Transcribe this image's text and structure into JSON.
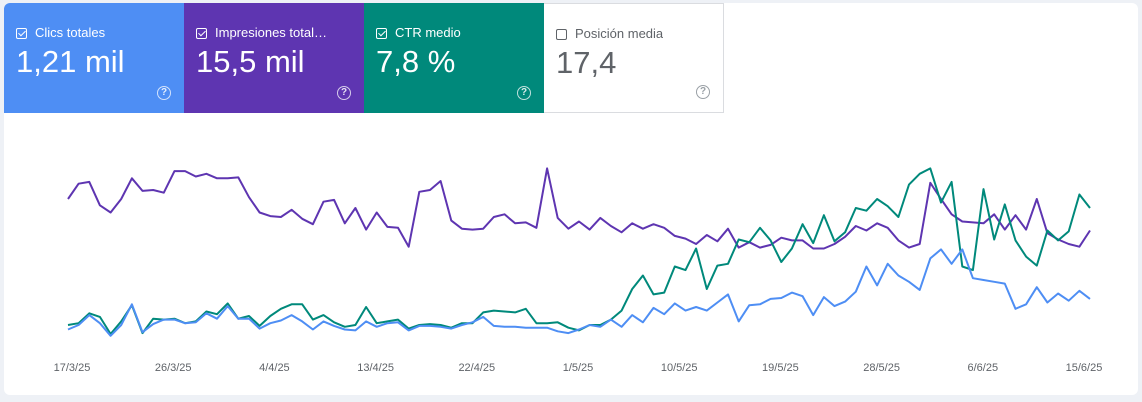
{
  "metrics": [
    {
      "label": "Clics totales",
      "value": "1,21 mil",
      "checked": true,
      "color": "#4e8ef4",
      "text_color": "#ffffff"
    },
    {
      "label": "Impresiones total…",
      "value": "15,5 mil",
      "checked": true,
      "color": "#5e35b1",
      "text_color": "#ffffff"
    },
    {
      "label": "CTR medio",
      "value": "7,8 %",
      "checked": true,
      "color": "#00897b",
      "text_color": "#ffffff"
    },
    {
      "label": "Posición media",
      "value": "17,4",
      "checked": false,
      "color": "#ffffff",
      "text_color": "#5f6368"
    }
  ],
  "help_glyph": "?",
  "chart_data": {
    "type": "line",
    "x_tick_labels": [
      "17/3/25",
      "26/3/25",
      "4/4/25",
      "13/4/25",
      "22/4/25",
      "1/5/25",
      "10/5/25",
      "19/5/25",
      "28/5/25",
      "6/6/25",
      "15/6/25"
    ],
    "x_range": [
      "17/3/25",
      "17/6/25"
    ],
    "y_axis_visible": false,
    "grid": false,
    "series": [
      {
        "name": "Impresiones totales",
        "color": "#5e35b1",
        "values": [
          200,
          217,
          219,
          193,
          185,
          200,
          223,
          209,
          210,
          207,
          231,
          231,
          225,
          228,
          223,
          223,
          224,
          202,
          185,
          181,
          180,
          188,
          178,
          172,
          197,
          199,
          173,
          190,
          166,
          185,
          169,
          168,
          147,
          208,
          210,
          220,
          176,
          167,
          166,
          167,
          180,
          183,
          173,
          174,
          168,
          234,
          179,
          167,
          175,
          166,
          179,
          170,
          163,
          173,
          167,
          172,
          168,
          159,
          156,
          150,
          160,
          153,
          167,
          146,
          152,
          146,
          149,
          157,
          154,
          154,
          145,
          145,
          150,
          158,
          170,
          165,
          173,
          168,
          154,
          146,
          150,
          218,
          200,
          183,
          175,
          174,
          173,
          183,
          166,
          182,
          166,
          200,
          162,
          155,
          150,
          147,
          165
        ]
      },
      {
        "name": "CTR medio",
        "color": "#00897b",
        "values": [
          60,
          62,
          73,
          69,
          50,
          64,
          82,
          51,
          67,
          66,
          67,
          62,
          64,
          75,
          72,
          84,
          67,
          70,
          59,
          70,
          78,
          83,
          83,
          66,
          71,
          63,
          58,
          60,
          80,
          62,
          64,
          66,
          56,
          60,
          61,
          60,
          57,
          62,
          62,
          74,
          76,
          75,
          74,
          78,
          62,
          62,
          63,
          57,
          54,
          60,
          60,
          66,
          76,
          100,
          115,
          94,
          96,
          125,
          121,
          145,
          100,
          126,
          128,
          155,
          152,
          168,
          154,
          130,
          145,
          172,
          151,
          182,
          153,
          163,
          190,
          187,
          200,
          192,
          180,
          216,
          228,
          234,
          196,
          219,
          125,
          121,
          211,
          155,
          194,
          154,
          136,
          126,
          165,
          154,
          164,
          205,
          190
        ]
      },
      {
        "name": "Clics totales",
        "color": "#4e8ef4",
        "values": [
          55,
          60,
          71,
          62,
          48,
          60,
          83,
          52,
          61,
          66,
          66,
          62,
          63,
          73,
          67,
          81,
          67,
          67,
          56,
          62,
          65,
          71,
          64,
          55,
          64,
          59,
          55,
          54,
          64,
          58,
          62,
          63,
          54,
          59,
          59,
          58,
          56,
          60,
          63,
          69,
          59,
          58,
          58,
          57,
          57,
          57,
          53,
          51,
          55,
          60,
          58,
          66,
          58,
          71,
          63,
          79,
          72,
          84,
          76,
          80,
          76,
          85,
          94,
          64,
          82,
          83,
          89,
          90,
          96,
          92,
          71,
          91,
          81,
          86,
          97,
          125,
          104,
          128,
          115,
          108,
          99,
          134,
          144,
          128,
          144,
          112,
          110,
          108,
          106,
          78,
          83,
          102,
          85,
          95,
          87,
          98,
          89
        ]
      }
    ]
  }
}
